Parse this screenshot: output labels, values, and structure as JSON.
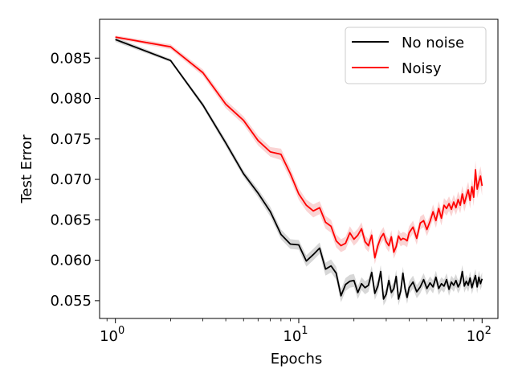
{
  "chart_data": {
    "type": "line",
    "xlabel": "Epochs",
    "ylabel": "Test Error",
    "xscale": "log",
    "xlim": [
      0.82,
      122
    ],
    "ylim": [
      0.0528,
      0.0898
    ],
    "x_ticks": [
      {
        "value": 1,
        "base": "10",
        "exp": "0"
      },
      {
        "value": 10,
        "base": "10",
        "exp": "1"
      },
      {
        "value": 100,
        "base": "10",
        "exp": "2"
      }
    ],
    "y_ticks": [
      "0.055",
      "0.060",
      "0.065",
      "0.070",
      "0.075",
      "0.080",
      "0.085"
    ],
    "legend_position": "top-right",
    "series": [
      {
        "name": "No noise",
        "color": "#000000",
        "band_color": "#bdbdbd",
        "x": [
          1,
          2,
          3,
          4,
          5,
          6,
          7,
          8,
          9,
          10,
          11,
          12,
          13,
          14,
          15,
          16,
          17,
          18,
          19,
          20,
          21,
          22,
          23,
          24,
          25,
          26,
          27,
          28,
          29,
          30,
          31,
          32,
          33,
          34,
          35,
          36,
          37,
          38,
          39,
          40,
          42,
          44,
          46,
          48,
          50,
          52,
          54,
          56,
          58,
          60,
          62,
          64,
          66,
          68,
          70,
          72,
          74,
          76,
          78,
          80,
          82,
          84,
          86,
          88,
          90,
          92,
          94,
          96,
          98,
          100
        ],
        "values": [
          0.0873,
          0.0847,
          0.0792,
          0.0745,
          0.0707,
          0.0683,
          0.066,
          0.0632,
          0.062,
          0.0619,
          0.0599,
          0.0607,
          0.0615,
          0.0589,
          0.0593,
          0.0584,
          0.0556,
          0.057,
          0.0574,
          0.0575,
          0.056,
          0.0571,
          0.0566,
          0.0569,
          0.0585,
          0.0559,
          0.0568,
          0.0586,
          0.0552,
          0.0558,
          0.0575,
          0.056,
          0.0565,
          0.058,
          0.0552,
          0.0562,
          0.0584,
          0.0565,
          0.0554,
          0.0566,
          0.0573,
          0.0561,
          0.0567,
          0.0576,
          0.0565,
          0.0572,
          0.0567,
          0.0579,
          0.0565,
          0.0571,
          0.0568,
          0.0576,
          0.0564,
          0.0573,
          0.0569,
          0.0575,
          0.0567,
          0.0572,
          0.0586,
          0.0568,
          0.0574,
          0.0569,
          0.0578,
          0.0566,
          0.0574,
          0.0581,
          0.0567,
          0.0579,
          0.0571,
          0.0577
        ],
        "band": [
          0.0003,
          0.0002,
          0.0003,
          0.0004,
          0.0004,
          0.0005,
          0.0006,
          0.0006,
          0.0006,
          0.0006,
          0.0007,
          0.0007,
          0.0007,
          0.0008,
          0.0008,
          0.0008,
          0.0008,
          0.0008,
          0.0008,
          0.0008,
          0.0008,
          0.0008,
          0.0008,
          0.0008,
          0.0008,
          0.0008,
          0.0008,
          0.0008,
          0.0008,
          0.0008,
          0.0008,
          0.0008,
          0.0008,
          0.0008,
          0.0008,
          0.0008,
          0.0008,
          0.0008,
          0.0008,
          0.0008,
          0.0008,
          0.0008,
          0.0008,
          0.0008,
          0.0008,
          0.0008,
          0.0008,
          0.0008,
          0.0008,
          0.0008,
          0.0008,
          0.0008,
          0.0008,
          0.0008,
          0.0008,
          0.0008,
          0.0008,
          0.0008,
          0.0008,
          0.0008,
          0.0008,
          0.0008,
          0.0008,
          0.0008,
          0.0008,
          0.0008,
          0.0008,
          0.0008,
          0.0008,
          0.0008
        ]
      },
      {
        "name": "Noisy",
        "color": "#ff0000",
        "band_color": "#f7b8b8",
        "x": [
          1,
          2,
          3,
          4,
          5,
          6,
          7,
          8,
          9,
          10,
          11,
          12,
          13,
          14,
          15,
          16,
          17,
          18,
          19,
          20,
          21,
          22,
          23,
          24,
          25,
          26,
          27,
          28,
          29,
          30,
          31,
          32,
          33,
          34,
          35,
          36,
          37,
          38,
          39,
          40,
          42,
          44,
          46,
          48,
          50,
          52,
          54,
          56,
          58,
          60,
          62,
          64,
          66,
          68,
          70,
          72,
          74,
          76,
          78,
          80,
          82,
          84,
          86,
          88,
          90,
          92,
          94,
          96,
          98,
          100
        ],
        "values": [
          0.0876,
          0.0864,
          0.0832,
          0.0793,
          0.0773,
          0.0748,
          0.0734,
          0.0731,
          0.0707,
          0.0682,
          0.0668,
          0.0661,
          0.0665,
          0.0647,
          0.0642,
          0.0624,
          0.0618,
          0.0621,
          0.0634,
          0.0626,
          0.0631,
          0.0639,
          0.0623,
          0.0618,
          0.0631,
          0.0603,
          0.0618,
          0.0628,
          0.0633,
          0.0623,
          0.0618,
          0.0629,
          0.061,
          0.0617,
          0.063,
          0.0625,
          0.0627,
          0.0626,
          0.0624,
          0.0634,
          0.0641,
          0.0627,
          0.0646,
          0.0649,
          0.0638,
          0.0648,
          0.066,
          0.0649,
          0.0664,
          0.0652,
          0.0668,
          0.0664,
          0.067,
          0.0663,
          0.0672,
          0.0665,
          0.0675,
          0.0668,
          0.0682,
          0.067,
          0.0679,
          0.0687,
          0.0674,
          0.0691,
          0.0678,
          0.0712,
          0.0688,
          0.0697,
          0.0704,
          0.0692
        ],
        "band": [
          0.0002,
          0.0003,
          0.0004,
          0.0005,
          0.0005,
          0.0006,
          0.0006,
          0.0007,
          0.0007,
          0.0007,
          0.0007,
          0.0008,
          0.0008,
          0.0008,
          0.0008,
          0.0008,
          0.0008,
          0.0008,
          0.0008,
          0.0008,
          0.0008,
          0.0008,
          0.0008,
          0.0008,
          0.0008,
          0.0008,
          0.0008,
          0.0008,
          0.0008,
          0.0008,
          0.0008,
          0.0008,
          0.0008,
          0.0008,
          0.0008,
          0.0008,
          0.0008,
          0.0008,
          0.0008,
          0.0008,
          0.0008,
          0.0008,
          0.0008,
          0.0008,
          0.0008,
          0.0008,
          0.0009,
          0.0009,
          0.0009,
          0.0009,
          0.0009,
          0.0009,
          0.0009,
          0.0009,
          0.0009,
          0.0009,
          0.001,
          0.001,
          0.001,
          0.001,
          0.001,
          0.001,
          0.001,
          0.001,
          0.0011,
          0.0011,
          0.0011,
          0.0012,
          0.0012,
          0.0012
        ]
      }
    ]
  }
}
